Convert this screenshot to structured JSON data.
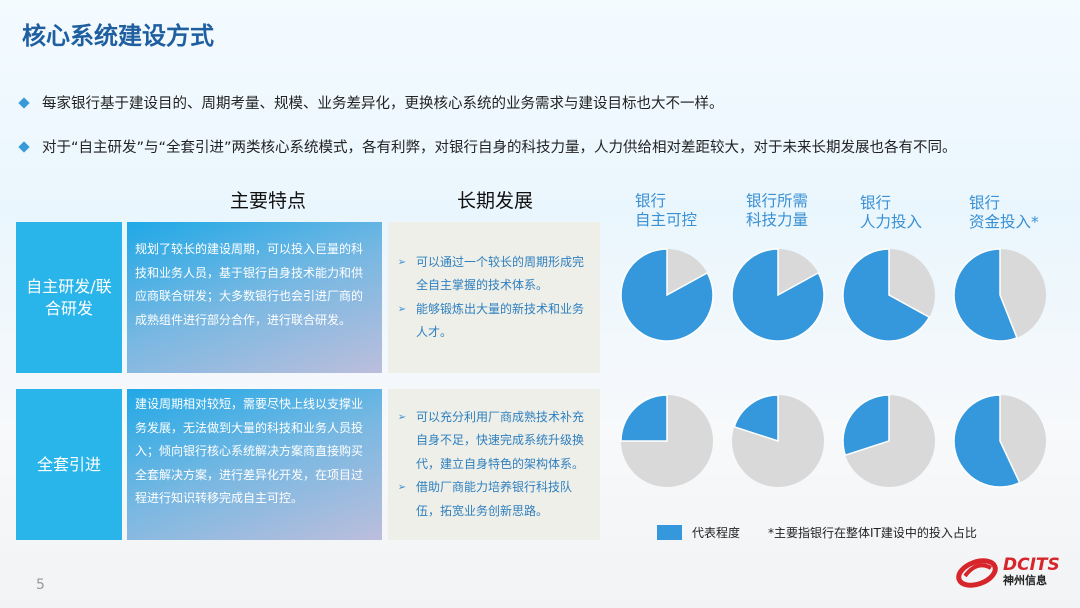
{
  "title": "核心系统建设方式",
  "bullets": [
    "每家银行基于建设目的、周期考量、规模、业务差异化，更换核心系统的业务需求与建设目标也大不一样。",
    "对于“自主研发”与“全套引进”两类核心系统模式，各有利弊，对银行自身的科技力量，人力供给相对差距较大，对于未来长期发展也各有不同。"
  ],
  "columns": {
    "features": "主要特点",
    "long_term": "长期发展"
  },
  "rows": [
    {
      "label": "自主研发/联合研发",
      "features": "规划了较长的建设周期，可以投入巨量的科技和业务人员，基于银行自身技术能力和供应商联合研发；大多数银行也会引进厂商的成熟组件进行部分合作，进行联合研发。",
      "long_term": [
        "可以通过一个较长的周期形成完全自主掌握的技术体系。",
        "能够锻炼出大量的新技术和业务人才。"
      ]
    },
    {
      "label": "全套引进",
      "features": "建设周期相对较短，需要尽快上线以支撑业务发展，无法做到大量的科技和业务人员投入；倾向银行核心系统解决方案商直接购买全套解决方案，进行差异化开发，在项目过程进行知识转移完成自主可控。",
      "long_term": [
        "可以充分利用厂商成熟技术补充自身不足，快速完成系统升级换代，建立自身特色的架构体系。",
        "借助厂商能力培养银行科技队伍，拓宽业务创新思路。"
      ]
    }
  ],
  "chart_data": {
    "type": "pie",
    "categories": [
      [
        "银行",
        "自主可控"
      ],
      [
        "银行所需",
        "科技力量"
      ],
      [
        "银行",
        "人力投入"
      ],
      [
        "银行",
        "资金投入*"
      ]
    ],
    "series": [
      {
        "row": "自主研发/联合研发",
        "values": [
          0.83,
          0.83,
          0.67,
          0.56
        ]
      },
      {
        "row": "全套引进",
        "values": [
          0.25,
          0.2,
          0.3,
          0.57
        ]
      }
    ],
    "colors": {
      "represented": "#3597dc",
      "rest": "#d9d9d9"
    },
    "legend": "代表程度",
    "footnote": "*主要指银行在整体IT建设中的投入占比"
  },
  "page_number": "5",
  "logo": {
    "text": "DCITS",
    "subtext": "神州信息",
    "color": "#d7262b"
  }
}
